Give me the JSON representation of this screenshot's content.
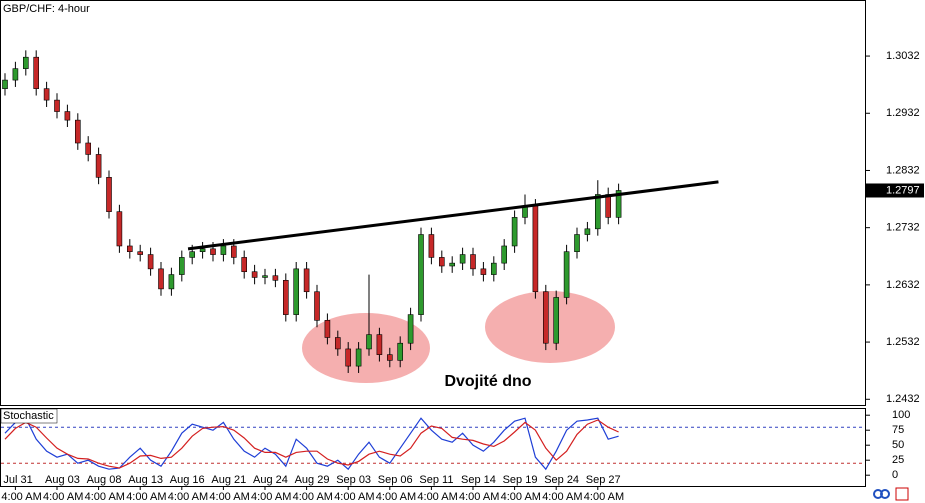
{
  "chart_data": [
    {
      "type": "candlestick",
      "title": "GBP/CHF: 4-hour",
      "categories": [
        null,
        "Jul 31",
        null,
        null,
        null,
        "Aug 03",
        null,
        null,
        null,
        "Aug 08",
        null,
        null,
        null,
        "Aug 13",
        null,
        null,
        null,
        "Aug 16",
        null,
        null,
        null,
        "Aug 21",
        null,
        null,
        null,
        "Aug 24",
        null,
        null,
        null,
        "Aug 29",
        null,
        null,
        null,
        "Sep 03",
        null,
        null,
        null,
        "Sep 06",
        null,
        null,
        null,
        "Sep 11",
        null,
        null,
        null,
        "Sep 14",
        null,
        null,
        null,
        "Sep 19",
        null,
        null,
        null,
        "Sep 24",
        null,
        null,
        null,
        "Sep 27",
        null,
        null
      ],
      "time_label": "4:00 AM",
      "open": [
        1.2975,
        1.299,
        1.301,
        1.303,
        1.2975,
        1.2955,
        1.2935,
        1.292,
        1.288,
        1.286,
        1.282,
        1.276,
        1.27,
        1.269,
        1.2685,
        1.266,
        1.2625,
        1.265,
        1.268,
        1.269,
        1.2695,
        1.2685,
        1.27,
        1.268,
        1.2655,
        1.2645,
        1.2648,
        1.264,
        1.258,
        1.266,
        1.262,
        1.257,
        1.254,
        1.252,
        1.249,
        1.252,
        1.2545,
        1.251,
        1.25,
        1.253,
        1.258,
        1.272,
        1.268,
        1.2665,
        1.267,
        1.2685,
        1.266,
        1.265,
        1.267,
        1.27,
        1.275,
        1.277,
        1.262,
        1.253,
        1.261,
        1.269,
        1.272,
        1.273,
        1.279,
        1.275
      ],
      "high": [
        1.3002,
        1.3022,
        1.3042,
        1.3042,
        1.2987,
        1.2967,
        1.2947,
        1.2932,
        1.2892,
        1.2872,
        1.2832,
        1.2772,
        1.2712,
        1.2702,
        1.2697,
        1.2672,
        1.2662,
        1.2692,
        1.2702,
        1.2707,
        1.2707,
        1.2712,
        1.2712,
        1.2692,
        1.2667,
        1.266,
        1.266,
        1.2652,
        1.2672,
        1.2672,
        1.2632,
        1.2582,
        1.2552,
        1.2532,
        1.2532,
        1.265,
        1.2557,
        1.2522,
        1.2542,
        1.2592,
        1.2732,
        1.2732,
        1.2692,
        1.2682,
        1.2697,
        1.2697,
        1.2672,
        1.2682,
        1.2712,
        1.2762,
        1.279,
        1.2782,
        1.2632,
        1.2622,
        1.2702,
        1.2732,
        1.2742,
        1.2815,
        1.2802,
        1.2809
      ],
      "low": [
        1.2963,
        1.2978,
        1.2998,
        1.2963,
        1.2943,
        1.2923,
        1.2908,
        1.2868,
        1.2848,
        1.2808,
        1.2748,
        1.2688,
        1.2678,
        1.2673,
        1.2648,
        1.2613,
        1.2613,
        1.2638,
        1.2668,
        1.2678,
        1.2673,
        1.2673,
        1.2668,
        1.2643,
        1.2633,
        1.2633,
        1.2628,
        1.2568,
        1.2568,
        1.2608,
        1.2558,
        1.2528,
        1.2508,
        1.2478,
        1.2478,
        1.2508,
        1.2498,
        1.2488,
        1.2488,
        1.2518,
        1.2568,
        1.2668,
        1.2653,
        1.2653,
        1.2658,
        1.2648,
        1.2638,
        1.2638,
        1.2658,
        1.2688,
        1.2738,
        1.2608,
        1.2518,
        1.2518,
        1.2598,
        1.2678,
        1.2708,
        1.2718,
        1.2738,
        1.2738
      ],
      "close": [
        1.299,
        1.301,
        1.303,
        1.2975,
        1.2955,
        1.2935,
        1.292,
        1.288,
        1.286,
        1.282,
        1.276,
        1.27,
        1.269,
        1.2685,
        1.266,
        1.2625,
        1.265,
        1.268,
        1.269,
        1.2695,
        1.2685,
        1.27,
        1.268,
        1.2655,
        1.2645,
        1.2648,
        1.264,
        1.258,
        1.266,
        1.262,
        1.257,
        1.254,
        1.252,
        1.249,
        1.252,
        1.2545,
        1.251,
        1.25,
        1.253,
        1.258,
        1.272,
        1.268,
        1.2665,
        1.267,
        1.2685,
        1.266,
        1.265,
        1.267,
        1.27,
        1.275,
        1.277,
        1.262,
        1.253,
        1.261,
        1.269,
        1.272,
        1.273,
        1.279,
        1.275,
        1.2797
      ],
      "colors": {
        "up": "#2e9a2e",
        "down": "#c62828"
      },
      "ylim": [
        1.2422,
        1.313
      ],
      "yticks": [
        1.3032,
        1.2932,
        1.2832,
        1.2732,
        1.2632,
        1.2532,
        1.2432
      ],
      "trendline": {
        "x": [
          17.6,
          68.6
        ],
        "y": [
          1.2695,
          1.2812
        ]
      },
      "annotation": "Dvojité dno"
    },
    {
      "type": "stochastic",
      "title": "Stochastic",
      "series": [
        {
          "color": "#1f3fd6",
          "values": [
            70,
            88,
            95,
            60,
            40,
            30,
            35,
            20,
            25,
            15,
            10,
            12,
            30,
            45,
            25,
            15,
            40,
            70,
            85,
            80,
            75,
            88,
            60,
            40,
            30,
            45,
            35,
            15,
            60,
            45,
            20,
            15,
            25,
            10,
            35,
            55,
            30,
            20,
            45,
            70,
            95,
            75,
            60,
            55,
            70,
            50,
            40,
            55,
            75,
            90,
            95,
            30,
            10,
            40,
            75,
            90,
            92,
            95,
            60,
            65
          ]
        },
        {
          "color": "#d42020",
          "values": [
            60,
            78,
            88,
            80,
            62,
            45,
            35,
            28,
            27,
            20,
            15,
            12,
            20,
            32,
            33,
            28,
            30,
            45,
            65,
            78,
            80,
            81,
            75,
            62,
            45,
            38,
            38,
            30,
            38,
            40,
            40,
            27,
            20,
            17,
            23,
            35,
            40,
            35,
            32,
            45,
            70,
            82,
            78,
            63,
            60,
            58,
            52,
            48,
            57,
            72,
            88,
            75,
            45,
            25,
            40,
            68,
            85,
            92,
            80,
            72
          ]
        }
      ],
      "levels": [
        80,
        20
      ],
      "ylim": [
        -18,
        112
      ],
      "yticks": [
        100,
        75,
        50,
        25,
        0
      ]
    }
  ]
}
